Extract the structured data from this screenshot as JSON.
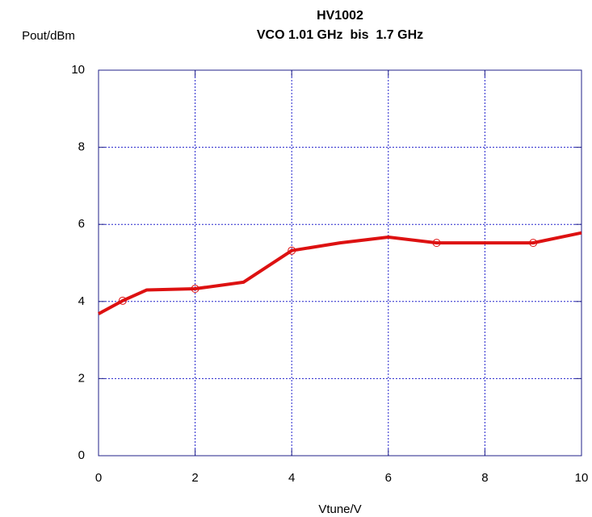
{
  "chart_data": {
    "type": "line",
    "title": "HV1002",
    "subtitle": "VCO 1.01 GHz  bis  1.7 GHz",
    "xlabel": "Vtune/V",
    "ylabel": "Pout/dBm",
    "xlim": [
      0,
      10
    ],
    "ylim": [
      0,
      10
    ],
    "xticks": [
      0,
      2,
      4,
      6,
      8,
      10
    ],
    "yticks": [
      0,
      2,
      4,
      6,
      8,
      10
    ],
    "grid": true,
    "series": [
      {
        "color": "#dd1111",
        "x": [
          0,
          0.5,
          1,
          2,
          3,
          4,
          5,
          6,
          7,
          8,
          9,
          10
        ],
        "values": [
          3.68,
          4.02,
          4.3,
          4.33,
          4.5,
          5.32,
          5.52,
          5.67,
          5.52,
          5.52,
          5.52,
          5.78
        ]
      },
      {
        "color": "#dd1111",
        "marker": "circle",
        "x": [
          0.5,
          2,
          4,
          7,
          9
        ],
        "values": [
          4.02,
          4.33,
          5.32,
          5.52,
          5.52
        ]
      }
    ]
  }
}
